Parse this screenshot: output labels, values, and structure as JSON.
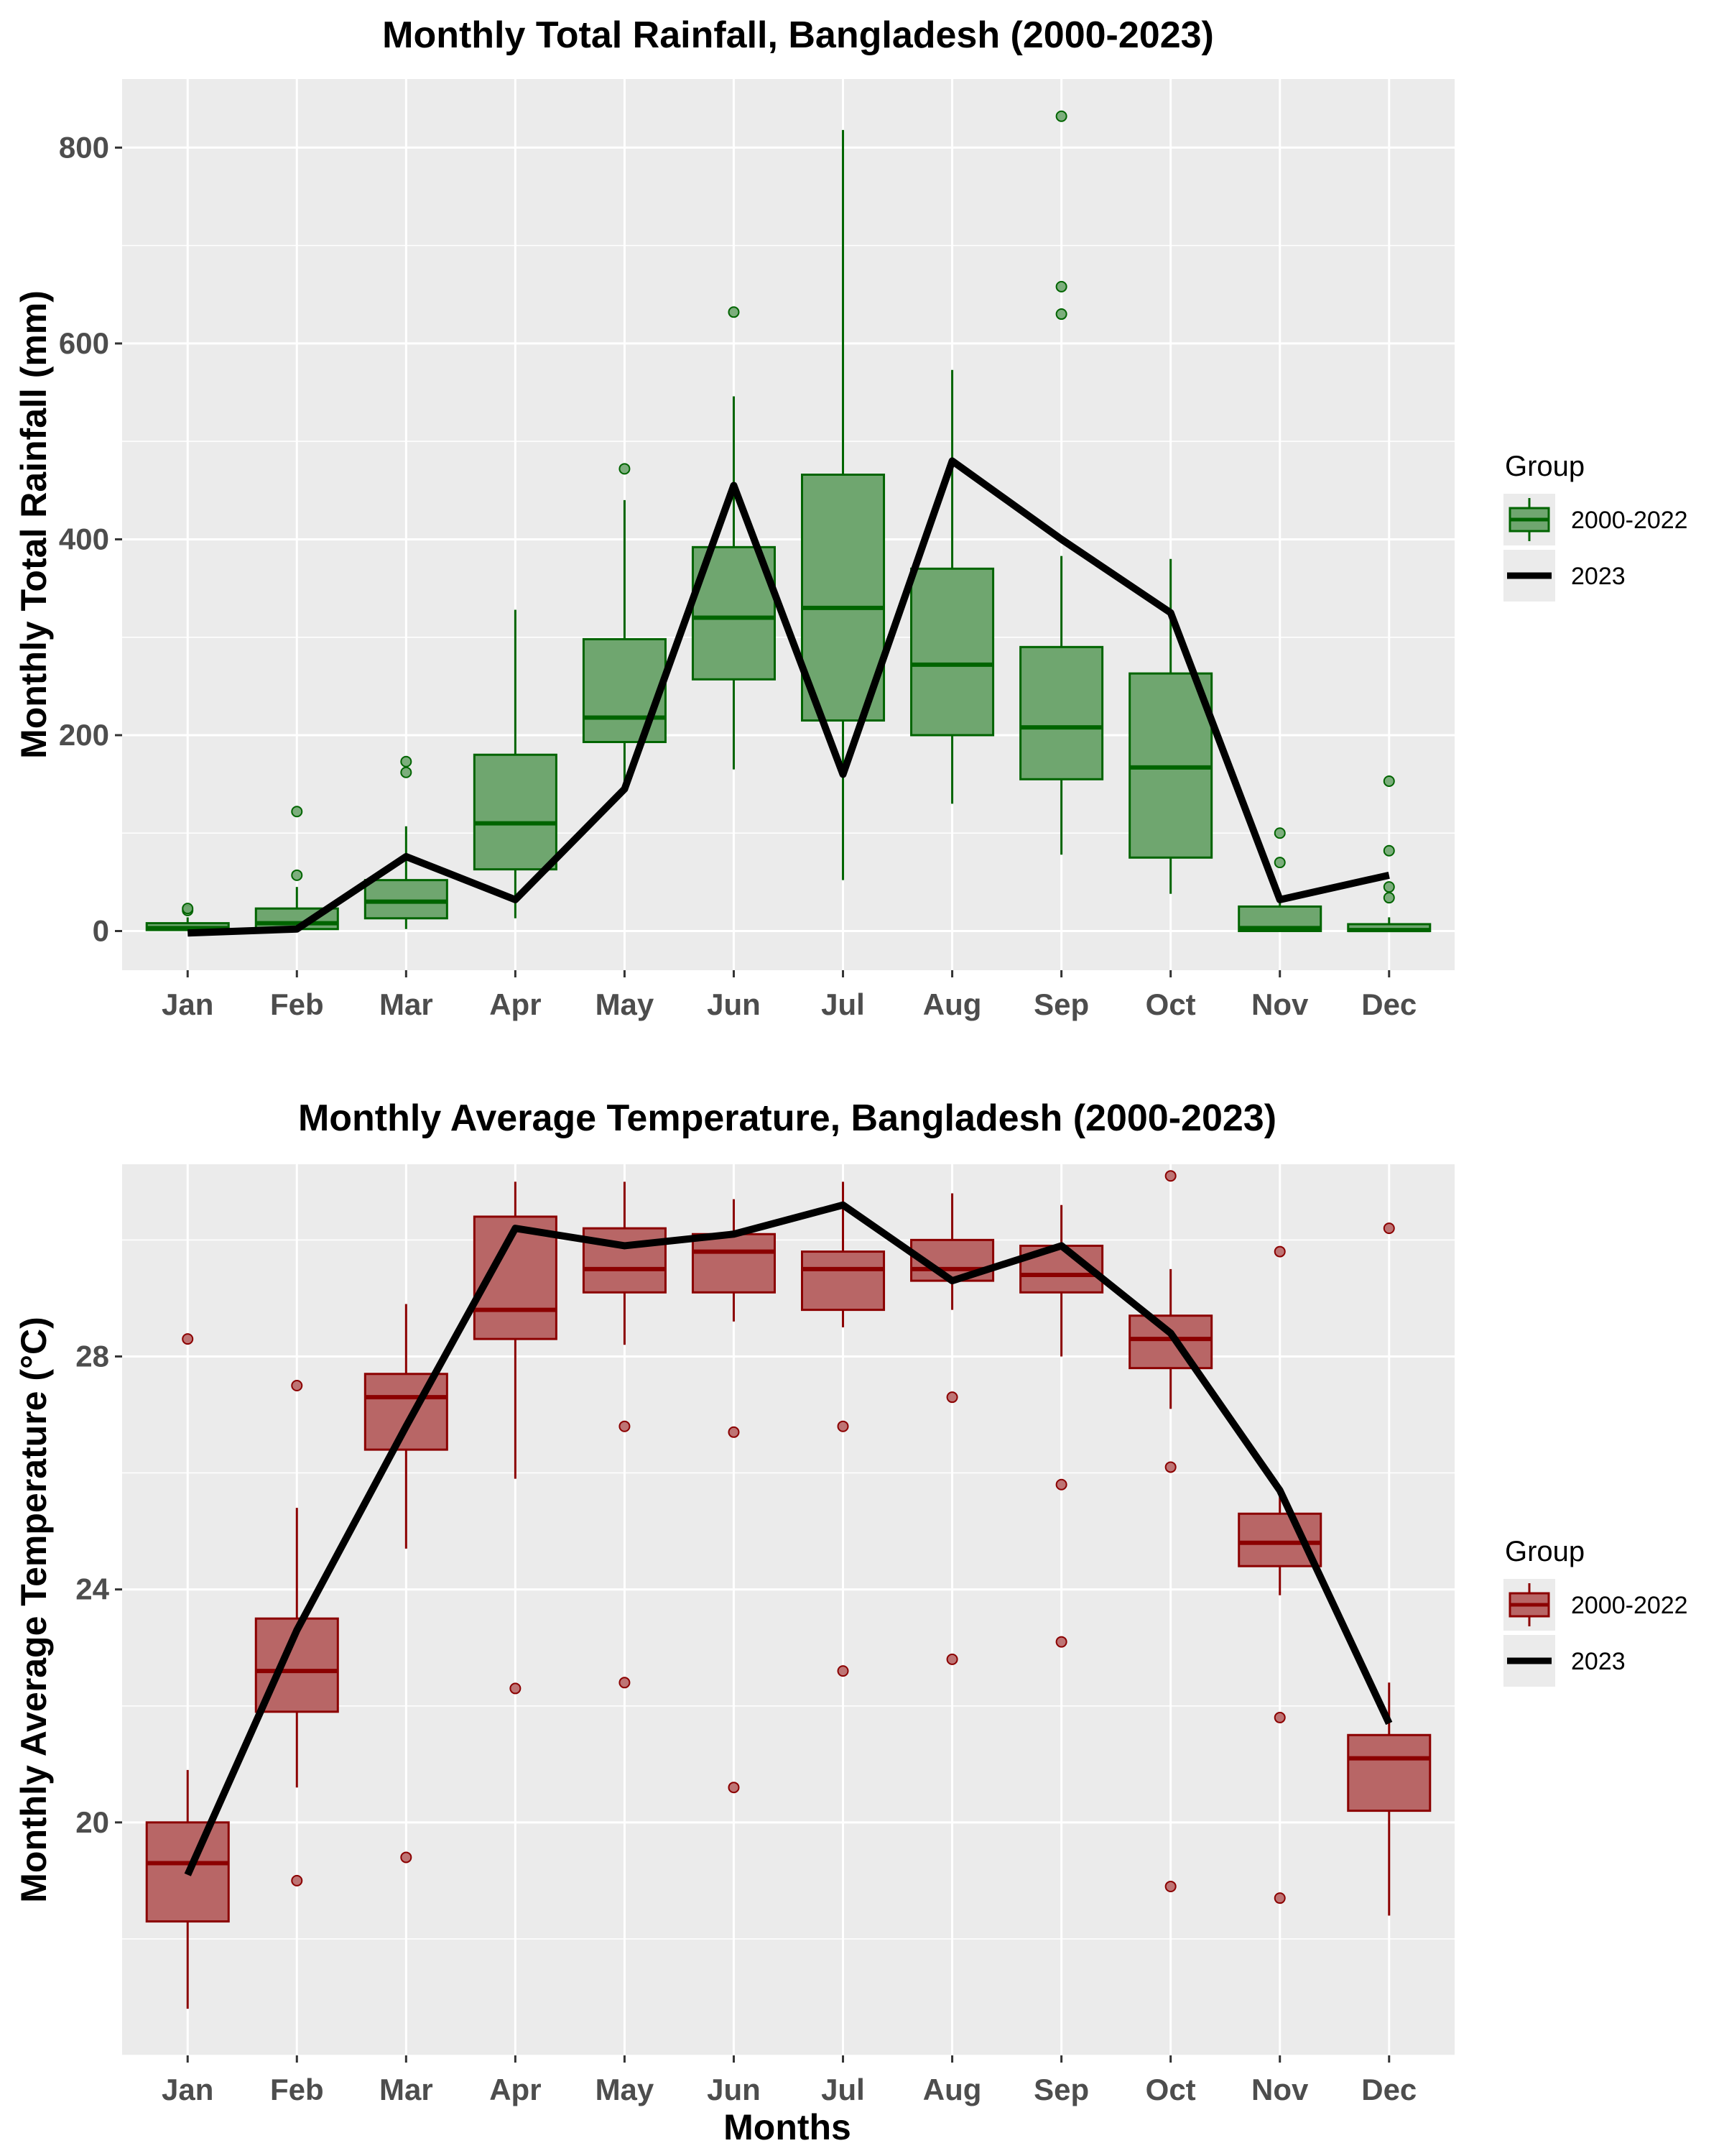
{
  "chart_data": [
    {
      "type": "box",
      "title": "Monthly Total Rainfall, Bangladesh (2000-2023)",
      "xlabel": "",
      "ylabel": "Monthly Total Rainfall (mm)",
      "ylim": [
        -40,
        870
      ],
      "yticks": [
        0,
        200,
        400,
        600,
        800
      ],
      "categories": [
        "Jan",
        "Feb",
        "Mar",
        "Apr",
        "May",
        "Jun",
        "Jul",
        "Aug",
        "Sep",
        "Oct",
        "Nov",
        "Dec"
      ],
      "legend": {
        "title": "Group",
        "position": "right",
        "box_label": "2000-2022",
        "line_label": "2023"
      },
      "colors": {
        "fill": "#6fa66f",
        "stroke": "#006400",
        "line": "#000000",
        "panel": "#ebebeb",
        "grid": "#ffffff"
      },
      "series": [
        {
          "name": "2000-2022",
          "type": "box",
          "boxes": [
            {
              "q1": 1,
              "median": 3,
              "q3": 8,
              "whisker_low": 0,
              "whisker_high": 14,
              "outliers": [
                21,
                23
              ]
            },
            {
              "q1": 2,
              "median": 8,
              "q3": 23,
              "whisker_low": 0,
              "whisker_high": 45,
              "outliers": [
                57,
                122
              ]
            },
            {
              "q1": 13,
              "median": 30,
              "q3": 52,
              "whisker_low": 2,
              "whisker_high": 107,
              "outliers": [
                162,
                173
              ]
            },
            {
              "q1": 63,
              "median": 110,
              "q3": 180,
              "whisker_low": 13,
              "whisker_high": 328,
              "outliers": []
            },
            {
              "q1": 193,
              "median": 218,
              "q3": 298,
              "whisker_low": 150,
              "whisker_high": 440,
              "outliers": [
                472
              ]
            },
            {
              "q1": 257,
              "median": 320,
              "q3": 392,
              "whisker_low": 165,
              "whisker_high": 546,
              "outliers": [
                632
              ]
            },
            {
              "q1": 215,
              "median": 330,
              "q3": 466,
              "whisker_low": 52,
              "whisker_high": 818,
              "outliers": []
            },
            {
              "q1": 200,
              "median": 272,
              "q3": 370,
              "whisker_low": 130,
              "whisker_high": 573,
              "outliers": []
            },
            {
              "q1": 155,
              "median": 208,
              "q3": 290,
              "whisker_low": 78,
              "whisker_high": 383,
              "outliers": [
                630,
                658,
                832
              ]
            },
            {
              "q1": 75,
              "median": 167,
              "q3": 263,
              "whisker_low": 38,
              "whisker_high": 380,
              "outliers": []
            },
            {
              "q1": 0,
              "median": 3,
              "q3": 25,
              "whisker_low": 0,
              "whisker_high": 30,
              "outliers": [
                70,
                100
              ]
            },
            {
              "q1": 0,
              "median": 1,
              "q3": 7,
              "whisker_low": 0,
              "whisker_high": 14,
              "outliers": [
                34,
                45,
                82,
                153
              ]
            }
          ]
        },
        {
          "name": "2023",
          "type": "line",
          "values": [
            -2,
            2,
            76,
            32,
            145,
            455,
            160,
            480,
            400,
            325,
            32,
            57
          ]
        }
      ]
    },
    {
      "type": "box",
      "title": "Monthly Average Temperature, Bangladesh (2000-2023)",
      "xlabel": "Months",
      "ylabel": "Monthly Average Temperature (°C)",
      "ylim": [
        16,
        31.3
      ],
      "yticks": [
        20,
        24,
        28
      ],
      "categories": [
        "Jan",
        "Feb",
        "Mar",
        "Apr",
        "May",
        "Jun",
        "Jul",
        "Aug",
        "Sep",
        "Oct",
        "Nov",
        "Dec"
      ],
      "legend": {
        "title": "Group",
        "position": "right",
        "box_label": "2000-2022",
        "line_label": "2023"
      },
      "colors": {
        "fill": "#b86666",
        "stroke": "#8b0000",
        "line": "#000000",
        "panel": "#ebebeb",
        "grid": "#ffffff"
      },
      "series": [
        {
          "name": "2000-2022",
          "type": "box",
          "boxes": [
            {
              "q1": 18.3,
              "median": 19.3,
              "q3": 20.0,
              "whisker_low": 16.8,
              "whisker_high": 20.9,
              "outliers": [
                28.3
              ]
            },
            {
              "q1": 21.9,
              "median": 22.6,
              "q3": 23.5,
              "whisker_low": 20.6,
              "whisker_high": 25.4,
              "outliers": [
                19.0,
                27.5
              ]
            },
            {
              "q1": 26.4,
              "median": 27.3,
              "q3": 27.7,
              "whisker_low": 24.7,
              "whisker_high": 28.9,
              "outliers": [
                19.4
              ]
            },
            {
              "q1": 28.3,
              "median": 28.8,
              "q3": 30.4,
              "whisker_low": 25.9,
              "whisker_high": 31.0,
              "outliers": [
                22.3
              ]
            },
            {
              "q1": 29.1,
              "median": 29.5,
              "q3": 30.2,
              "whisker_low": 28.2,
              "whisker_high": 31.0,
              "outliers": [
                22.4,
                26.8
              ]
            },
            {
              "q1": 29.1,
              "median": 29.8,
              "q3": 30.1,
              "whisker_low": 28.6,
              "whisker_high": 30.7,
              "outliers": [
                20.6,
                26.7
              ]
            },
            {
              "q1": 28.8,
              "median": 29.5,
              "q3": 29.8,
              "whisker_low": 28.5,
              "whisker_high": 31.0,
              "outliers": [
                22.6,
                26.8
              ]
            },
            {
              "q1": 29.3,
              "median": 29.5,
              "q3": 30.0,
              "whisker_low": 28.8,
              "whisker_high": 30.8,
              "outliers": [
                22.8,
                27.3
              ]
            },
            {
              "q1": 29.1,
              "median": 29.4,
              "q3": 29.9,
              "whisker_low": 28.0,
              "whisker_high": 30.6,
              "outliers": [
                23.1,
                25.8
              ]
            },
            {
              "q1": 27.8,
              "median": 28.3,
              "q3": 28.7,
              "whisker_low": 27.1,
              "whisker_high": 29.5,
              "outliers": [
                18.9,
                26.1,
                31.1
              ]
            },
            {
              "q1": 24.4,
              "median": 24.8,
              "q3": 25.3,
              "whisker_low": 23.9,
              "whisker_high": 25.7,
              "outliers": [
                18.7,
                21.8,
                29.8
              ]
            },
            {
              "q1": 20.2,
              "median": 21.1,
              "q3": 21.5,
              "whisker_low": 18.4,
              "whisker_high": 22.4,
              "outliers": [
                30.2
              ]
            }
          ]
        },
        {
          "name": "2023",
          "type": "line",
          "values": [
            19.1,
            23.3,
            26.8,
            30.2,
            29.9,
            30.1,
            30.6,
            29.3,
            29.9,
            28.4,
            25.7,
            21.7
          ]
        }
      ]
    }
  ]
}
